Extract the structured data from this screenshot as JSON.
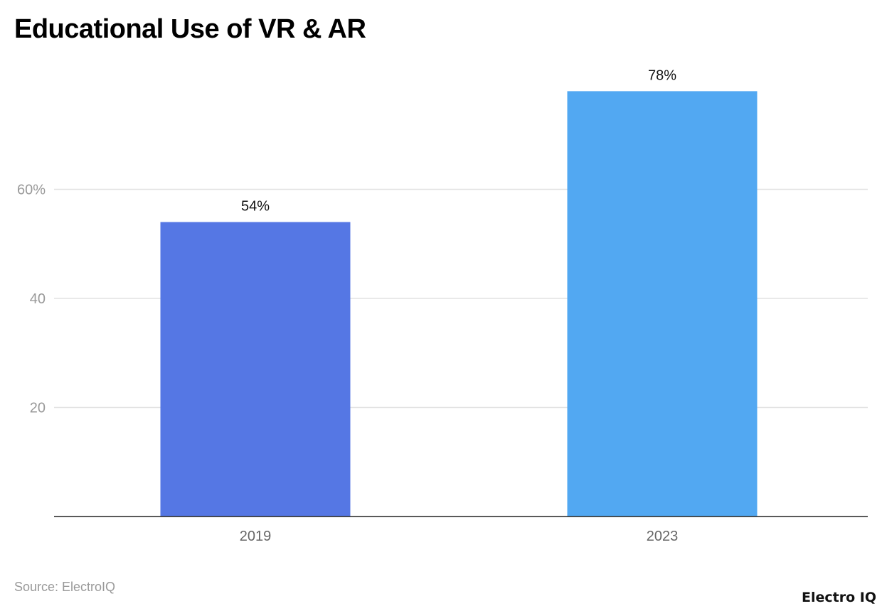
{
  "title": "Educational Use of VR & AR",
  "source": "Source: ElectroIQ",
  "logo": "Electro IQ",
  "chart_data": {
    "type": "bar",
    "categories": [
      "2019",
      "2023"
    ],
    "values": [
      54,
      78
    ],
    "data_labels": [
      "54%",
      "78%"
    ],
    "colors": [
      "#5577e4",
      "#52a8f2"
    ],
    "ylim": [
      0,
      80
    ],
    "yticks": [
      20,
      40,
      60
    ],
    "ytick_labels": [
      "20",
      "40",
      "60%"
    ],
    "grid": true,
    "xlabel": "",
    "ylabel": ""
  }
}
